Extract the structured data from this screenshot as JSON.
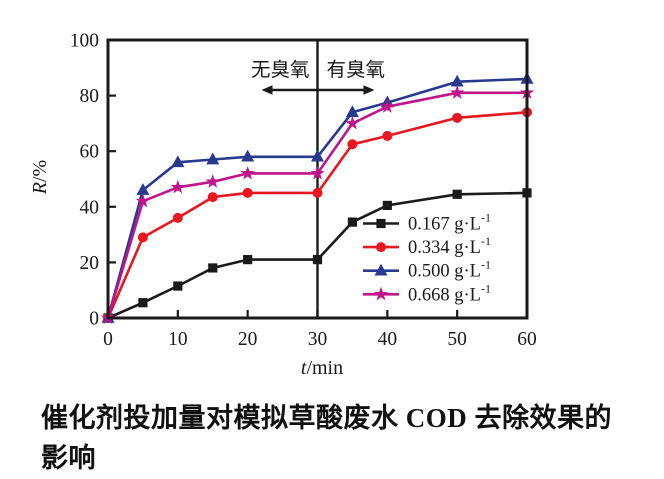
{
  "page": {
    "background": "#ffffff",
    "text_color": "#1a1a1a"
  },
  "chart_data": {
    "type": "line",
    "title": "",
    "xlabel": "t/min",
    "ylabel": "R/%",
    "xlim": [
      0,
      60
    ],
    "ylim": [
      0,
      100
    ],
    "xticks": [
      0,
      10,
      20,
      30,
      40,
      50,
      60
    ],
    "yticks": [
      0,
      20,
      40,
      60,
      80,
      100
    ],
    "grid": false,
    "legend_position": "inside-lower-right",
    "x": [
      0,
      5,
      10,
      15,
      20,
      30,
      35,
      40,
      50,
      60
    ],
    "series": [
      {
        "name": "0.167 g·L⁻¹",
        "marker": "square",
        "color": "#1a1a1a",
        "values": [
          0,
          5.5,
          11.5,
          18,
          21,
          21,
          34.5,
          40.5,
          44.5,
          45
        ]
      },
      {
        "name": "0.334 g·L⁻¹",
        "marker": "circle",
        "color": "#e8161f",
        "values": [
          0,
          29,
          36,
          43.5,
          45,
          45,
          62.5,
          65.5,
          72,
          74
        ]
      },
      {
        "name": "0.500 g·L⁻¹",
        "marker": "triangle",
        "color": "#283a8f",
        "values": [
          0,
          46,
          56,
          57,
          58,
          58,
          74,
          77.5,
          85,
          86
        ]
      },
      {
        "name": "0.668 g·L⁻¹",
        "marker": "star",
        "color": "#c0148c",
        "values": [
          0,
          42,
          47,
          49,
          52,
          52,
          70,
          76,
          81,
          81
        ]
      }
    ],
    "divider": {
      "x": 30,
      "left_label": "无臭氧",
      "right_label": "有臭氧"
    }
  },
  "caption": {
    "lines": [
      "催化剂投加量对模拟草酸废水 COD 去除效果的",
      "影响"
    ],
    "full_text": "催化剂投加量对模拟草酸废水 COD 去除效果的影响"
  }
}
